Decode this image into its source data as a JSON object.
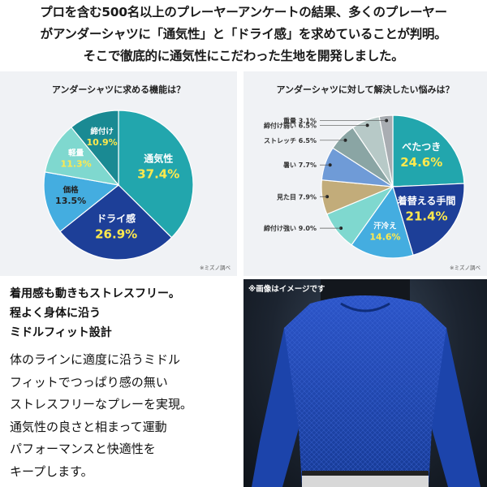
{
  "intro": {
    "line1": "プロを含む500名以上のプレーヤーアンケートの結果、多くのプレーヤー",
    "line2": "がアンダーシャツに「通気性」と「ドライ感」を求めていることが判明。",
    "line3": "そこで徹底的に通気性にこだわった生地を開発しました。"
  },
  "chart_data": [
    {
      "type": "pie",
      "title": "アンダーシャツに求める機能は？",
      "source_note": "※ミズノ調べ",
      "slices": [
        {
          "label": "通気性",
          "value": 37.4,
          "value_text": "37.4%",
          "color": "#22a6ad"
        },
        {
          "label": "ドライ感",
          "value": 26.9,
          "value_text": "26.9%",
          "color": "#1d3f98"
        },
        {
          "label": "価格",
          "value": 13.5,
          "value_text": "13.5%",
          "color": "#44ade0"
        },
        {
          "label": "軽量",
          "value": 11.3,
          "value_text": "11.3%",
          "color": "#7fd8cf"
        },
        {
          "label": "締付け",
          "value": 10.9,
          "value_text": "10.9%",
          "color": "#1a8a93"
        }
      ]
    },
    {
      "type": "pie",
      "title": "アンダーシャツに対して解決したい悩みは？",
      "source_note": "※ミズノ調べ",
      "slices": [
        {
          "label": "べたつき",
          "value": 24.6,
          "value_text": "24.6%",
          "color": "#22a6ad"
        },
        {
          "label": "着替える手間",
          "value": 21.4,
          "value_text": "21.4%",
          "color": "#1d3f98"
        },
        {
          "label": "汗冷え",
          "value": 14.6,
          "value_text": "14.6%",
          "color": "#44ade0"
        },
        {
          "label": "締付け強い",
          "value": 9.0,
          "value_text": "9.0%",
          "color": "#7fd8cf"
        },
        {
          "label": "見た目",
          "value": 7.9,
          "value_text": "7.9%",
          "color": "#c2ac7a"
        },
        {
          "label": "暑い",
          "value": 7.7,
          "value_text": "7.7%",
          "color": "#6f9bd7"
        },
        {
          "label": "ストレッチ",
          "value": 6.5,
          "value_text": "6.5%",
          "color": "#8aa5a4"
        },
        {
          "label": "締付け弱い",
          "value": 6.5,
          "value_text": "6.5%",
          "color": "#b7c9c7"
        },
        {
          "label": "重量",
          "value": 3.1,
          "value_text": "3.1%",
          "color": "#a9adb2"
        }
      ]
    }
  ],
  "feature": {
    "headline1": "着用感も動きもストレスフリー。",
    "headline2": "程よく身体に沿う",
    "headline3": "ミドルフィット設計",
    "body1": "体のラインに適度に沿うミドル",
    "body2": "フィットでつっぱり感の無い",
    "body3": "ストレスフリーなプレーを実現。",
    "body4": "通気性の良さと相まって運動",
    "body5": "パフォーマンスと快適性を",
    "body6": "キープします。"
  },
  "photo": {
    "caption": "※画像はイメージです"
  }
}
